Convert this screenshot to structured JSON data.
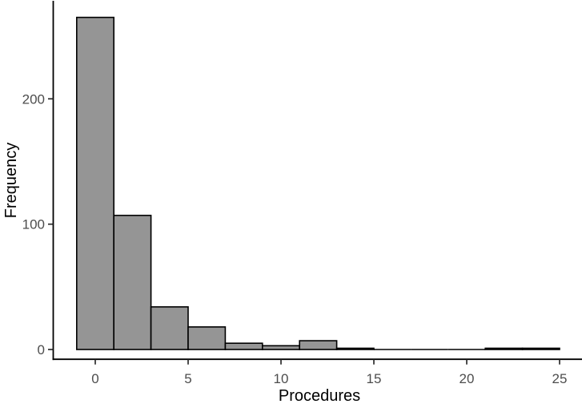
{
  "figure": {
    "background": "#ffffff"
  },
  "chart_data": {
    "type": "bar",
    "subtype": "histogram",
    "title": "",
    "xlabel": "Procedures",
    "ylabel": "Frequency",
    "bin_width": 2,
    "bin_centers": [
      0,
      2,
      4,
      6,
      8,
      10,
      12,
      14,
      16,
      18,
      20,
      22,
      24
    ],
    "counts": [
      265,
      107,
      34,
      18,
      5,
      3,
      7,
      1,
      0,
      0,
      0,
      1,
      1
    ],
    "x_ticks": [
      "0",
      "5",
      "10",
      "15",
      "20",
      "25"
    ],
    "x_tick_values": [
      0,
      5,
      10,
      15,
      20,
      25
    ],
    "y_ticks": [
      "0",
      "100",
      "200"
    ],
    "y_tick_values": [
      0,
      100,
      200
    ],
    "xlim": [
      -2.3,
      26.2
    ],
    "ylim": [
      0,
      280
    ],
    "grid": false,
    "legend": false,
    "bar_fill": "#959595",
    "bar_stroke": "#000000",
    "axis_color": "#000000",
    "tick_color": "#1f1f1f",
    "tick_label_color": "#4d4d4d",
    "title_color": "#000000"
  }
}
